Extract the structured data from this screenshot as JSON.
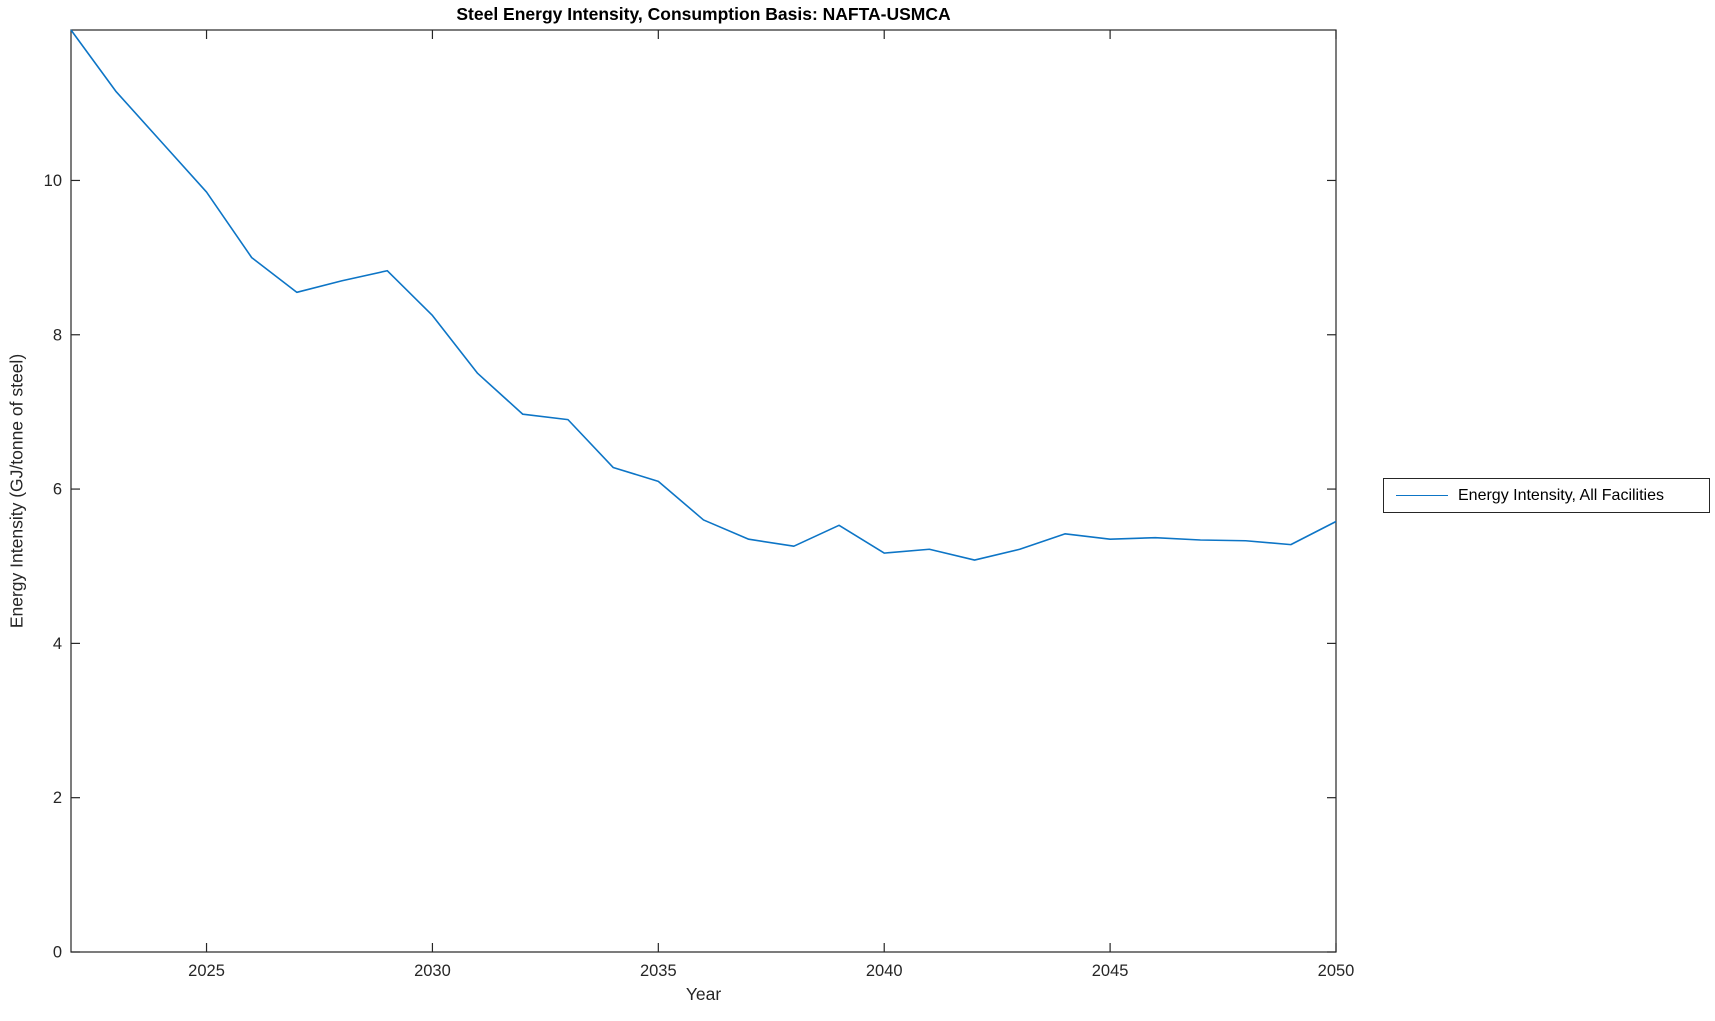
{
  "figure": {
    "background_color": "#ffffff",
    "axes_color": "#262626"
  },
  "chart_data": {
    "type": "line",
    "title": "Steel Energy Intensity, Consumption Basis: NAFTA-USMCA",
    "xlabel": "Year",
    "ylabel": "Energy Intensity (GJ/tonne of steel)",
    "xlim": [
      2022,
      2050
    ],
    "ylim": [
      0,
      11.95
    ],
    "x_ticks": [
      "2025",
      "2030",
      "2035",
      "2040",
      "2045",
      "2050"
    ],
    "x_tick_values": [
      2025,
      2030,
      2035,
      2040,
      2045,
      2050
    ],
    "y_ticks": [
      "0",
      "2",
      "4",
      "6",
      "8",
      "10"
    ],
    "y_tick_values": [
      0,
      2,
      4,
      6,
      8,
      10
    ],
    "grid": false,
    "box": true,
    "tick_direction": "in",
    "legend": {
      "position": "outside-right",
      "entries": [
        "Energy Intensity, All Facilities"
      ]
    },
    "series": [
      {
        "name": "Energy Intensity, All Facilities",
        "color": "#0d75c6",
        "line_width": 1.6,
        "x": [
          2022,
          2023,
          2024,
          2025,
          2026,
          2027,
          2028,
          2029,
          2030,
          2031,
          2032,
          2033,
          2034,
          2035,
          2036,
          2037,
          2038,
          2039,
          2040,
          2041,
          2042,
          2043,
          2044,
          2045,
          2046,
          2047,
          2048,
          2049,
          2050
        ],
        "values": [
          11.95,
          11.15,
          10.5,
          9.85,
          9.0,
          8.55,
          8.7,
          8.83,
          8.25,
          7.5,
          6.97,
          6.9,
          6.28,
          6.1,
          5.6,
          5.35,
          5.26,
          5.53,
          5.17,
          5.22,
          5.08,
          5.22,
          5.42,
          5.35,
          5.37,
          5.34,
          5.33,
          5.28,
          5.58
        ]
      }
    ]
  }
}
